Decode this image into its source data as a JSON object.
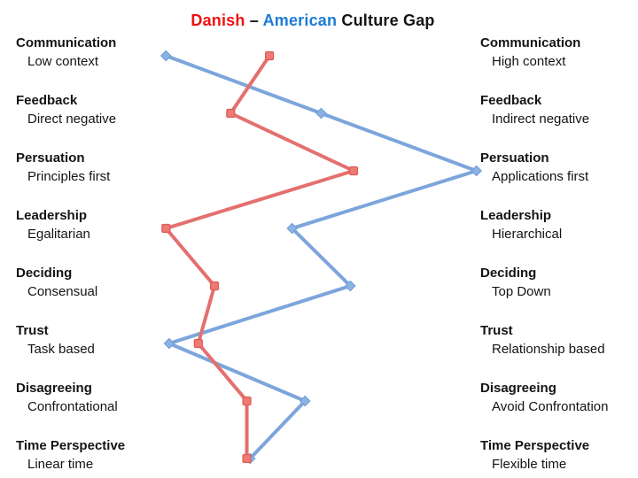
{
  "title": {
    "danish": "Danish",
    "separator": "–",
    "american": "American",
    "rest": "Culture Gap",
    "danish_color": "#ee1111",
    "american_color": "#1b7cd6"
  },
  "rows": [
    {
      "category": "Communication",
      "danish_trait": "Low context",
      "american_trait": "High context"
    },
    {
      "category": "Feedback",
      "danish_trait": "Direct negative",
      "american_trait": "Indirect negative"
    },
    {
      "category": "Persuation",
      "danish_trait": "Principles first",
      "american_trait": "Applications first"
    },
    {
      "category": "Leadership",
      "danish_trait": "Egalitarian",
      "american_trait": "Hierarchical"
    },
    {
      "category": "Deciding",
      "danish_trait": "Consensual",
      "american_trait": "Top Down"
    },
    {
      "category": "Trust",
      "danish_trait": "Task based",
      "american_trait": "Relationship based"
    },
    {
      "category": "Disagreeing",
      "danish_trait": "Confrontational",
      "american_trait": "Avoid Confrontation"
    },
    {
      "category": "Time Perspective",
      "danish_trait": "Linear time",
      "american_trait": "Flexible time"
    }
  ],
  "chart_data": {
    "type": "line",
    "orientation": "vertical-categories",
    "categories": [
      "Communication",
      "Feedback",
      "Persuation",
      "Leadership",
      "Deciding",
      "Trust",
      "Disagreeing",
      "Time Perspective"
    ],
    "xlim": [
      0,
      100
    ],
    "grid": false,
    "legend": "colored words in title",
    "series": [
      {
        "name": "Danish",
        "marker": "square",
        "line_color": "#e4706e",
        "marker_fill": "#ed7a73",
        "marker_stroke": "#e05a56",
        "values": [
          34,
          22,
          60,
          2,
          17,
          12,
          27,
          27
        ]
      },
      {
        "name": "American",
        "marker": "diamond",
        "line_color": "#7ca5dc",
        "marker_fill": "#8ab2e2",
        "marker_stroke": "#74a0d8",
        "values": [
          2,
          50,
          98,
          41,
          59,
          3,
          45,
          28
        ]
      }
    ]
  }
}
